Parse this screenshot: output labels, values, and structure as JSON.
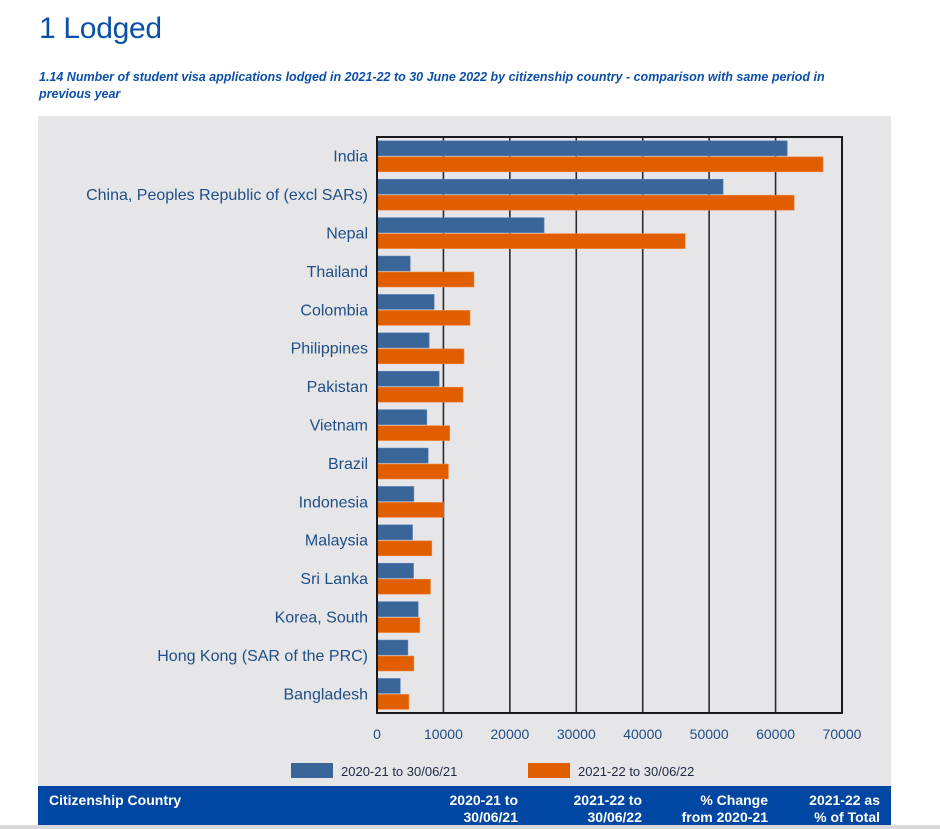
{
  "page": {
    "title": "1 Lodged",
    "subtitle": "1.14 Number of student visa applications lodged in 2021-22 to 30 June 2022 by citizenship country - comparison with same period in previous year"
  },
  "chart_data": {
    "type": "bar",
    "orientation": "horizontal",
    "title": "1.14 Number of student visa applications lodged in 2021-22 to 30 June 2022 by citizenship country - comparison with same period in previous year",
    "xlabel": "",
    "ylabel": "",
    "xlim": [
      0,
      70000
    ],
    "xticks": [
      0,
      10000,
      20000,
      30000,
      40000,
      50000,
      60000,
      70000
    ],
    "xtick_labels": [
      "0",
      "10000",
      "20000",
      "30000",
      "40000",
      "50000",
      "60000",
      "70000"
    ],
    "grid": "vertical",
    "legend_position": "bottom",
    "categories": [
      "India",
      "China, Peoples Republic of (excl SARs)",
      "Nepal",
      "Thailand",
      "Colombia",
      "Philippines",
      "Pakistan",
      "Vietnam",
      "Brazil",
      "Indonesia",
      "Malaysia",
      "Sri Lanka",
      "Korea, South",
      "Hong Kong (SAR of the PRC)",
      "Bangladesh"
    ],
    "series": [
      {
        "name": "2020-21 to 30/06/21",
        "color": "#3a6599",
        "values": [
          61750,
          52100,
          25150,
          5000,
          8600,
          7850,
          9350,
          7500,
          7700,
          5550,
          5350,
          5500,
          6200,
          4650,
          3500
        ]
      },
      {
        "name": "2021-22 to 30/06/22",
        "color": "#e05e00",
        "values": [
          67150,
          62800,
          46400,
          14600,
          14000,
          13100,
          12950,
          10950,
          10750,
          10000,
          8250,
          8050,
          6450,
          5550,
          4800
        ]
      }
    ]
  },
  "table": {
    "headers": [
      {
        "line1": "Citizenship Country",
        "line2": ""
      },
      {
        "line1": "2020-21 to",
        "line2": "30/06/21"
      },
      {
        "line1": "2021-22 to",
        "line2": "30/06/22"
      },
      {
        "line1": "% Change",
        "line2": "from 2020-21"
      },
      {
        "line1": "2021-22 as",
        "line2": "% of Total"
      }
    ]
  }
}
